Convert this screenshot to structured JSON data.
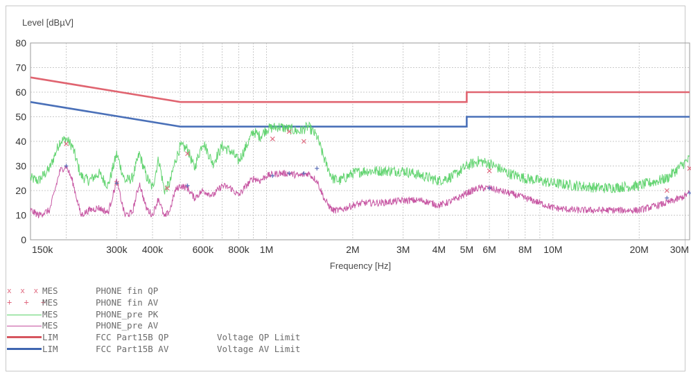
{
  "chart_data": {
    "type": "line",
    "xscale": "log",
    "xlim": [
      150000,
      30000000
    ],
    "ylim": [
      0,
      80
    ],
    "ylabel": "Level [dBµV]",
    "xlabel": "Frequency [Hz]",
    "yticks": [
      0,
      10,
      20,
      30,
      40,
      50,
      60,
      70,
      80
    ],
    "xtick_labels": [
      {
        "v": 150000,
        "label": "150k"
      },
      {
        "v": 300000,
        "label": "300k"
      },
      {
        "v": 400000,
        "label": "400k"
      },
      {
        "v": 600000,
        "label": "600k"
      },
      {
        "v": 800000,
        "label": "800k"
      },
      {
        "v": 1000000,
        "label": "1M"
      },
      {
        "v": 2000000,
        "label": "2M"
      },
      {
        "v": 3000000,
        "label": "3M"
      },
      {
        "v": 4000000,
        "label": "4M"
      },
      {
        "v": 5000000,
        "label": "5M"
      },
      {
        "v": 6000000,
        "label": "6M"
      },
      {
        "v": 8000000,
        "label": "8M"
      },
      {
        "v": 10000000,
        "label": "10M"
      },
      {
        "v": 20000000,
        "label": "20M"
      },
      {
        "v": 30000000,
        "label": "30M"
      }
    ],
    "grid": true,
    "series": [
      {
        "name": "FCC Part15B QP",
        "kind": "limit",
        "color": "#e06470",
        "x": [
          150000,
          500000,
          5000000,
          5000000,
          30000000
        ],
        "y": [
          66,
          56,
          56,
          60,
          60
        ]
      },
      {
        "name": "FCC Part15B AV",
        "kind": "limit",
        "color": "#4a70b8",
        "x": [
          150000,
          500000,
          5000000,
          5000000,
          30000000
        ],
        "y": [
          56,
          46,
          46,
          50,
          50
        ]
      },
      {
        "name": "PHONE_pre PK",
        "kind": "trace",
        "color": "#5cd26a",
        "x": [
          150000,
          160000,
          175000,
          190000,
          200000,
          210000,
          225000,
          240000,
          260000,
          280000,
          300000,
          320000,
          340000,
          360000,
          380000,
          400000,
          420000,
          440000,
          460000,
          480000,
          500000,
          530000,
          560000,
          600000,
          650000,
          700000,
          750000,
          800000,
          850000,
          900000,
          950000,
          1000000,
          1100000,
          1200000,
          1300000,
          1400000,
          1500000,
          1600000,
          1700000,
          1800000,
          2000000,
          2200000,
          2500000,
          3000000,
          3500000,
          4000000,
          4500000,
          5000000,
          5500000,
          6000000,
          7000000,
          8000000,
          9000000,
          10000000,
          12000000,
          15000000,
          20000000,
          25000000,
          28000000,
          30000000
        ],
        "y": [
          25,
          24,
          29,
          40,
          41,
          38,
          26,
          24,
          27,
          22,
          35,
          24,
          25,
          35,
          26,
          21,
          33,
          20,
          23,
          32,
          38,
          37,
          29,
          40,
          31,
          38,
          36,
          32,
          38,
          44,
          42,
          45,
          46,
          45,
          44,
          46,
          42,
          32,
          25,
          24,
          27,
          28,
          28,
          28,
          26,
          24,
          26,
          30,
          32,
          31,
          27,
          25,
          24,
          23,
          22,
          21,
          22,
          25,
          30,
          33
        ]
      },
      {
        "name": "PHONE_pre AV",
        "kind": "trace",
        "color": "#c44e9e",
        "x": [
          150000,
          160000,
          175000,
          190000,
          200000,
          210000,
          225000,
          240000,
          260000,
          280000,
          300000,
          320000,
          340000,
          360000,
          380000,
          400000,
          420000,
          440000,
          460000,
          480000,
          500000,
          530000,
          560000,
          600000,
          650000,
          700000,
          750000,
          800000,
          850000,
          900000,
          950000,
          1000000,
          1100000,
          1200000,
          1300000,
          1400000,
          1500000,
          1600000,
          1700000,
          1800000,
          2000000,
          2200000,
          2500000,
          3000000,
          3500000,
          4000000,
          4500000,
          5000000,
          5500000,
          6000000,
          7000000,
          8000000,
          9000000,
          10000000,
          12000000,
          15000000,
          20000000,
          25000000,
          28000000,
          30000000
        ],
        "y": [
          12,
          10,
          12,
          28,
          30,
          24,
          10,
          12,
          13,
          11,
          24,
          10,
          11,
          23,
          13,
          10,
          17,
          9,
          12,
          20,
          22,
          21,
          17,
          20,
          18,
          22,
          21,
          18,
          22,
          25,
          24,
          26,
          27,
          27,
          26,
          27,
          24,
          16,
          12,
          12,
          14,
          15,
          15,
          16,
          16,
          14,
          16,
          19,
          21,
          21,
          19,
          17,
          15,
          13,
          12,
          12,
          12,
          15,
          17,
          19
        ]
      }
    ],
    "markers": [
      {
        "name": "PHONE fin QP",
        "symbol": "x",
        "color": "#e06a80",
        "x": [
          200000,
          300000,
          450000,
          530000,
          1050000,
          1200000,
          1350000,
          6000000,
          25000000,
          30000000
        ],
        "y": [
          39,
          23,
          21,
          35,
          41,
          44,
          40,
          28,
          20,
          29
        ]
      },
      {
        "name": "PHONE fin AV",
        "symbol": "+",
        "color": "#5a6fb8",
        "x": [
          200000,
          300000,
          530000,
          1050000,
          1200000,
          1350000,
          1500000,
          6000000,
          25000000,
          30000000
        ],
        "y": [
          30,
          23,
          22,
          26,
          27,
          27,
          29,
          21,
          17,
          19
        ]
      }
    ]
  },
  "legend": [
    {
      "marks": "x x x",
      "prefix": "MES",
      "name": "PHONE fin QP",
      "desc": "",
      "style": "x",
      "color": "#e06a80"
    },
    {
      "marks": "+ + +",
      "prefix": "MES",
      "name": "PHONE fin AV",
      "desc": "",
      "style": "plus",
      "color": "#e06a80"
    },
    {
      "marks": "",
      "prefix": "MES",
      "name": "PHONE_pre PK",
      "desc": "",
      "style": "thin",
      "color": "#5cd26a"
    },
    {
      "marks": "",
      "prefix": "MES",
      "name": "PHONE_pre AV",
      "desc": "",
      "style": "thin",
      "color": "#c44e9e"
    },
    {
      "marks": "",
      "prefix": "LIM",
      "name": "FCC Part15B QP",
      "desc": "Voltage QP Limit",
      "style": "thick",
      "color": "#d6555f"
    },
    {
      "marks": "",
      "prefix": "LIM",
      "name": "FCC Part15B AV",
      "desc": "Voltage AV Limit",
      "style": "thick",
      "color": "#3f66b0"
    }
  ]
}
